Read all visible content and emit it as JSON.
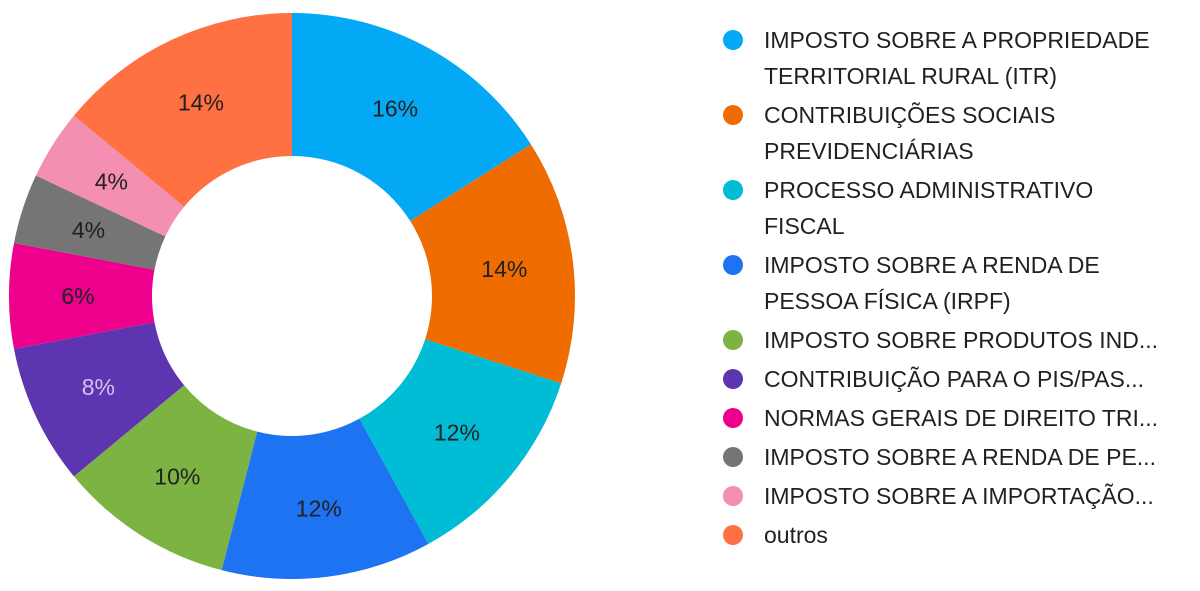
{
  "chart_data": {
    "type": "pie",
    "title": "",
    "series": [
      {
        "label": "IMPOSTO SOBRE A PROPRIEDADE TERRITORIAL RURAL (ITR)",
        "value": 16,
        "display": "16%",
        "color": "#03A9F4",
        "text_color": "#212121"
      },
      {
        "label": "CONTRIBUIÇÕES SOCIAIS PREVIDENCIÁRIAS",
        "value": 14,
        "display": "14%",
        "color": "#EF6C00",
        "text_color": "#212121"
      },
      {
        "label": "PROCESSO ADMINISTRATIVO FISCAL",
        "value": 12,
        "display": "12%",
        "color": "#00BCD4",
        "text_color": "#212121"
      },
      {
        "label": "IMPOSTO SOBRE A RENDA DE PESSOA FÍSICA (IRPF)",
        "value": 12,
        "display": "12%",
        "color": "#1E73F2",
        "text_color": "#212121"
      },
      {
        "label": "IMPOSTO SOBRE PRODUTOS IND...",
        "value": 10,
        "display": "10%",
        "color": "#7CB342",
        "text_color": "#212121"
      },
      {
        "label": "CONTRIBUIÇÃO PARA O PIS/PAS...",
        "value": 8,
        "display": "8%",
        "color": "#5E35B1",
        "text_color": "#D1C4E9"
      },
      {
        "label": "NORMAS GERAIS DE DIREITO TRI...",
        "value": 6,
        "display": "6%",
        "color": "#EC008C",
        "text_color": "#212121"
      },
      {
        "label": "IMPOSTO SOBRE A RENDA DE PE...",
        "value": 4,
        "display": "4%",
        "color": "#757575",
        "text_color": "#212121"
      },
      {
        "label": "IMPOSTO SOBRE A IMPORTAÇÃO...",
        "value": 4,
        "display": "4%",
        "color": "#F48FB1",
        "text_color": "#212121"
      },
      {
        "label": "outros",
        "value": 14,
        "display": "14%",
        "color": "#FF7043",
        "text_color": "#212121"
      }
    ],
    "legend_position": "right",
    "donut": true
  }
}
